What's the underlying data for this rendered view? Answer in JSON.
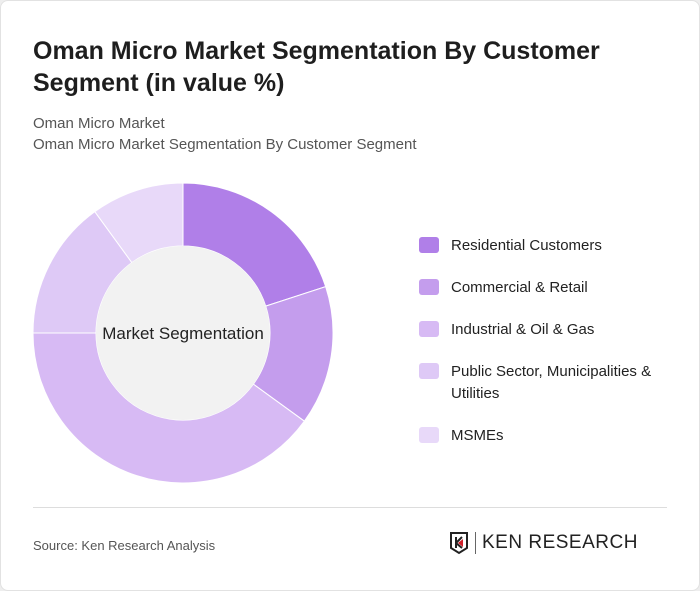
{
  "title": "Oman Micro Market Segmentation By Customer Segment (in value %)",
  "subtitle1": "Oman Micro Market",
  "subtitle2": "Oman Micro Market Segmentation By Customer Segment",
  "source": "Source: Ken Research Analysis",
  "logo_text": "KEN RESEARCH",
  "chart_data": {
    "type": "pie",
    "donut": true,
    "center_label": "Market Segmentation",
    "categories": [
      "Residential Customers",
      "Commercial & Retail",
      "Industrial & Oil & Gas",
      "Public Sector, Municipalities & Utilities",
      "MSMEs"
    ],
    "values": [
      20,
      15,
      40,
      15,
      10
    ],
    "colors": [
      "#b07fe8",
      "#c49ded",
      "#d7baf4",
      "#dec9f6",
      "#e8d9f9"
    ],
    "legend_position": "right"
  }
}
